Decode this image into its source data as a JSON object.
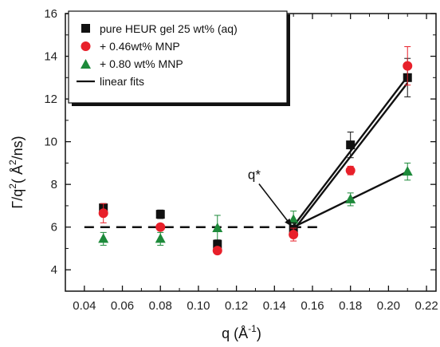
{
  "chart_data": {
    "type": "scatter",
    "xlabel": "q (Å",
    "xlabel_sup": "-1",
    "xlabel_close": ")",
    "ylabel": "Γ/q",
    "ylabel_sup": "2",
    "ylabel_rest": "( Å",
    "ylabel_sup2": "2",
    "ylabel_unit": "/ns)",
    "xlim": [
      0.03,
      0.225
    ],
    "ylim": [
      3,
      16
    ],
    "x_ticks": [
      0.04,
      0.06,
      0.08,
      0.1,
      0.12,
      0.14,
      0.16,
      0.18,
      0.2,
      0.22
    ],
    "x_tick_labels": [
      "0.04",
      "0.06",
      "0.08",
      "0.10",
      "0.12",
      "0.14",
      "0.16",
      "0.18",
      "0.20",
      "0.22"
    ],
    "y_ticks": [
      4,
      6,
      8,
      10,
      12,
      14,
      16
    ],
    "y_tick_labels": [
      "4",
      "6",
      "8",
      "10",
      "12",
      "14",
      "16"
    ],
    "legend_position": "top-left",
    "series": [
      {
        "name": "pure HEUR gel 25 wt% (aq)",
        "marker": "square",
        "color": "#111111",
        "points": [
          {
            "x": 0.05,
            "y": 6.9,
            "err": 0.2
          },
          {
            "x": 0.08,
            "y": 6.6,
            "err": 0.2
          },
          {
            "x": 0.11,
            "y": 5.2,
            "err": 0.2
          },
          {
            "x": 0.15,
            "y": 5.9,
            "err": 0.3
          },
          {
            "x": 0.18,
            "y": 9.85,
            "err": 0.6
          },
          {
            "x": 0.21,
            "y": 13.0,
            "err": 0.9
          }
        ]
      },
      {
        "name": "+ 0.46wt% MNP",
        "marker": "circle",
        "color": "#e8202a",
        "points": [
          {
            "x": 0.05,
            "y": 6.65,
            "err": 0.45
          },
          {
            "x": 0.08,
            "y": 6.0,
            "err": 0.15
          },
          {
            "x": 0.11,
            "y": 4.9,
            "err": 0.15
          },
          {
            "x": 0.15,
            "y": 5.65,
            "err": 0.3
          },
          {
            "x": 0.18,
            "y": 8.65,
            "err": 0.2
          },
          {
            "x": 0.21,
            "y": 13.55,
            "err": 0.9
          }
        ]
      },
      {
        "name": "+ 0.80 wt% MNP",
        "marker": "triangle",
        "color": "#1d8a3a",
        "points": [
          {
            "x": 0.05,
            "y": 5.45,
            "err": 0.3
          },
          {
            "x": 0.08,
            "y": 5.45,
            "err": 0.3
          },
          {
            "x": 0.11,
            "y": 5.95,
            "err": 0.6
          },
          {
            "x": 0.15,
            "y": 6.35,
            "err": 0.4
          },
          {
            "x": 0.18,
            "y": 7.3,
            "err": 0.3
          },
          {
            "x": 0.21,
            "y": 8.6,
            "err": 0.4
          }
        ]
      }
    ],
    "fits": {
      "name": "linear fits",
      "lines": [
        {
          "x": [
            0.15,
            0.21
          ],
          "y": [
            6.05,
            13.05
          ]
        },
        {
          "x": [
            0.15,
            0.21
          ],
          "y": [
            5.85,
            12.75
          ]
        },
        {
          "x": [
            0.15,
            0.21
          ],
          "y": [
            6.0,
            8.6
          ]
        }
      ]
    },
    "reference_line": {
      "style": "dashed",
      "y": 6.0,
      "x": [
        0.04,
        0.165
      ]
    },
    "annotations": [
      {
        "text": "q*",
        "x": 0.126,
        "y": 8.25,
        "arrow_to": [
          0.149,
          6.05
        ]
      }
    ]
  }
}
